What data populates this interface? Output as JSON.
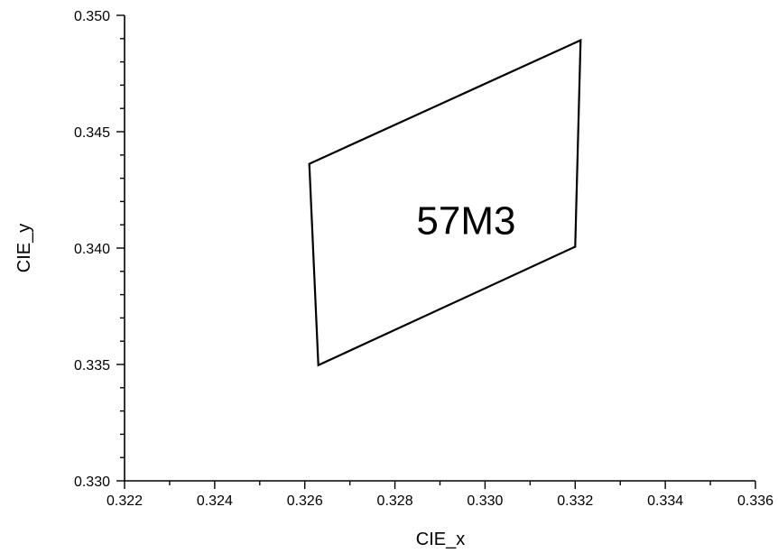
{
  "chart_data": {
    "type": "scatter",
    "xlabel": "CIE_x",
    "ylabel": "CIE_y",
    "xlim": [
      0.322,
      0.336
    ],
    "ylim": [
      0.33,
      0.35
    ],
    "x_ticks": [
      "0.322",
      "0.324",
      "0.326",
      "0.328",
      "0.330",
      "0.332",
      "0.334",
      "0.336"
    ],
    "y_ticks": [
      "0.330",
      "0.335",
      "0.340",
      "0.345",
      "0.350"
    ],
    "x_minor_step": 0.001,
    "y_minor_step": 0.001,
    "grid": false,
    "series": [
      {
        "label": "57M3",
        "closed": true,
        "color": "#000000",
        "points": [
          {
            "x": 0.3261,
            "y": 0.34362
          },
          {
            "x": 0.33212,
            "y": 0.34893
          },
          {
            "x": 0.332,
            "y": 0.34006
          },
          {
            "x": 0.3263,
            "y": 0.33497
          }
        ],
        "label_position": {
          "x": 0.32958,
          "y": 0.34118
        }
      }
    ]
  }
}
